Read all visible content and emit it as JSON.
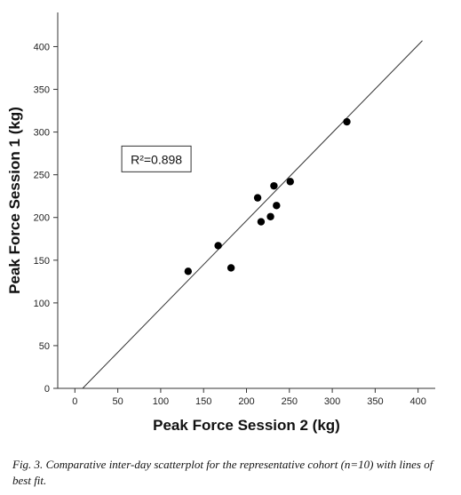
{
  "chart_data": {
    "type": "scatter",
    "xlabel": "Peak Force Session 2 (kg)",
    "ylabel": "Peak Force Session 1 (kg)",
    "xlim": [
      -20,
      420
    ],
    "ylim": [
      0,
      440
    ],
    "xticks": [
      0,
      50,
      100,
      150,
      200,
      250,
      300,
      350,
      400
    ],
    "yticks": [
      0,
      50,
      100,
      150,
      200,
      250,
      300,
      350,
      400
    ],
    "grid": false,
    "points": [
      {
        "x": 132,
        "y": 137
      },
      {
        "x": 167,
        "y": 167
      },
      {
        "x": 182,
        "y": 141
      },
      {
        "x": 213,
        "y": 223
      },
      {
        "x": 217,
        "y": 195
      },
      {
        "x": 228,
        "y": 201
      },
      {
        "x": 232,
        "y": 237
      },
      {
        "x": 235,
        "y": 214
      },
      {
        "x": 251,
        "y": 242
      },
      {
        "x": 317,
        "y": 312
      }
    ],
    "fit_line": {
      "x": [
        9,
        405
      ],
      "y": [
        0,
        407
      ]
    },
    "annotation": {
      "label": "R²=0.898",
      "x": 95,
      "y": 268
    },
    "marker_color": "#000000",
    "line_color": "#333333"
  },
  "caption": {
    "fig_label": "Fig. 3.",
    "text": " Comparative inter-day scatterplot for the representative cohort (n=10) with lines of best fit."
  }
}
